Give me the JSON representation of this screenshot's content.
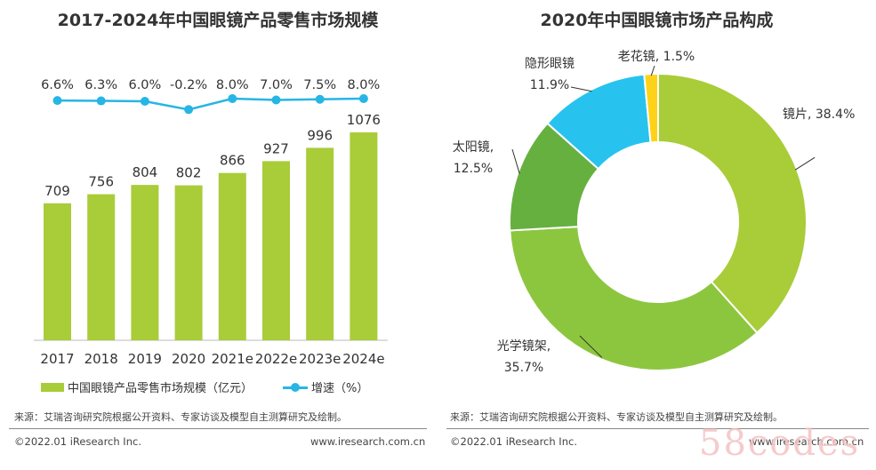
{
  "left": {
    "title": "2017-2024年中国眼镜产品零售市场规模",
    "legend": {
      "bar_label": "中国眼镜产品零售市场规模（亿元）",
      "line_label": "增速（%）"
    },
    "source": "来源：艾瑞咨询研究院根据公开资料、专家访谈及模型自主测算研究及绘制。",
    "copyright": "©2022.01 iResearch Inc.",
    "website": "www.iresearch.com.cn"
  },
  "right": {
    "title": "2020年中国眼镜市场产品构成",
    "source": "来源：艾瑞咨询研究院根据公开资料、专家访谈及模型自主测算研究及绘制。",
    "copyright": "©2022.01 iResearch Inc.",
    "website": "www.iresearch.com.cn"
  },
  "watermark": "58codes",
  "colors": {
    "bar": "#a9cc39",
    "line": "#27b5e5",
    "pie": [
      "#a9cc39",
      "#8cc63f",
      "#66b040",
      "#27c3ee",
      "#ffd21a"
    ]
  },
  "chart_data": [
    {
      "type": "bar",
      "title": "2017-2024年中国眼镜产品零售市场规模",
      "categories": [
        "2017",
        "2018",
        "2019",
        "2020",
        "2021e",
        "2022e",
        "2023e",
        "2024e"
      ],
      "series": [
        {
          "name": "中国眼镜产品零售市场规模（亿元）",
          "type": "bar",
          "values": [
            709,
            756,
            804,
            802,
            866,
            927,
            996,
            1076
          ],
          "labels": [
            "709",
            "756",
            "804",
            "802",
            "866",
            "927",
            "996",
            "1076"
          ]
        },
        {
          "name": "增速（%）",
          "type": "line",
          "values": [
            6.6,
            6.3,
            6.0,
            -0.2,
            8.0,
            7.0,
            7.5,
            8.0
          ],
          "labels": [
            "6.6%",
            "6.3%",
            "6.0%",
            "-0.2%",
            "8.0%",
            "7.0%",
            "7.5%",
            "8.0%"
          ]
        }
      ],
      "grid": false,
      "legend_position": "bottom"
    },
    {
      "type": "pie",
      "title": "2020年中国眼镜市场产品构成",
      "donut": true,
      "slices": [
        {
          "name": "镜片",
          "value": 38.4,
          "label": "镜片, 38.4%"
        },
        {
          "name": "光学镜架",
          "value": 35.7,
          "label": "光学镜架,",
          "label2": "35.7%"
        },
        {
          "name": "太阳镜",
          "value": 12.5,
          "label": "太阳镜,",
          "label2": "12.5%"
        },
        {
          "name": "隐形眼镜",
          "value": 11.9,
          "label": "隐形眼镜",
          "label2": "11.9%"
        },
        {
          "name": "老花镜",
          "value": 1.5,
          "label": "老花镜, 1.5%"
        }
      ]
    }
  ]
}
